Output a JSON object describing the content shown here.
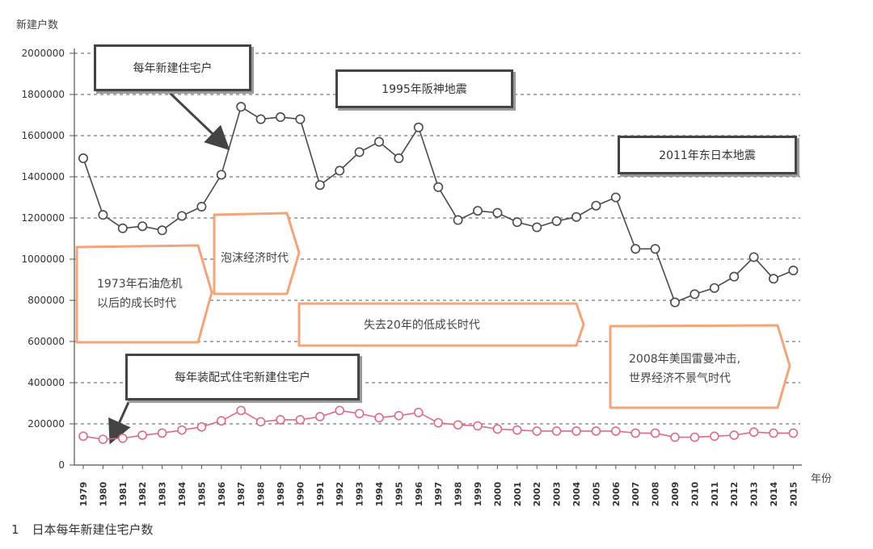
{
  "chart_data": {
    "type": "line",
    "title": "日本每年新建住宅户数",
    "figure_number": "1",
    "ylabel": "新建户数",
    "xlabel": "年份",
    "ylim": [
      0,
      2000000
    ],
    "yticks": [
      "0",
      "200000",
      "400000",
      "600000",
      "800000",
      "1000000",
      "1200000",
      "1400000",
      "1600000",
      "1800000",
      "2000000"
    ],
    "grid": "horizontal-dashed",
    "categories": [
      "1979",
      "1980",
      "1981",
      "1982",
      "1983",
      "1984",
      "1985",
      "1986",
      "1987",
      "1988",
      "1989",
      "1990",
      "1991",
      "1992",
      "1993",
      "1994",
      "1995",
      "1996",
      "1997",
      "1998",
      "1999",
      "2000",
      "2001",
      "2002",
      "2003",
      "2004",
      "2005",
      "2006",
      "2007",
      "2008",
      "2009",
      "2010",
      "2011",
      "2012",
      "2013",
      "2014",
      "2015"
    ],
    "series": [
      {
        "name": "每年新建住宅户",
        "color": "#4a4a4a",
        "values": [
          1490000,
          1215000,
          1150000,
          1160000,
          1140000,
          1210000,
          1255000,
          1410000,
          1740000,
          1680000,
          1690000,
          1680000,
          1360000,
          1430000,
          1520000,
          1570000,
          1490000,
          1640000,
          1350000,
          1190000,
          1235000,
          1225000,
          1180000,
          1155000,
          1185000,
          1205000,
          1260000,
          1300000,
          1050000,
          1050000,
          790000,
          830000,
          860000,
          915000,
          1010000,
          905000,
          945000
        ]
      },
      {
        "name": "每年装配式住宅新建住宅户",
        "color": "#e06a86",
        "values": [
          140000,
          125000,
          130000,
          145000,
          155000,
          170000,
          185000,
          215000,
          265000,
          210000,
          220000,
          220000,
          235000,
          265000,
          250000,
          230000,
          240000,
          255000,
          205000,
          195000,
          190000,
          175000,
          170000,
          165000,
          165000,
          165000,
          165000,
          165000,
          155000,
          155000,
          135000,
          135000,
          140000,
          145000,
          160000,
          155000,
          155000
        ]
      }
    ],
    "annotations": {
      "series_main": "每年新建住宅户",
      "series_prefab": "每年装配式住宅新建住宅户",
      "quake_1995": "1995年阪神地震",
      "quake_2011": "2011年东日本地震",
      "phase_oil_line1": "1973年石油危机",
      "phase_oil_line2": "以后的成长时代",
      "phase_bubble": "泡沫经济时代",
      "phase_lost": "失去20年的低成长时代",
      "phase_lehman_line1": "2008年美国雷曼冲击,",
      "phase_lehman_line2": "世界经济不景气时代"
    }
  }
}
